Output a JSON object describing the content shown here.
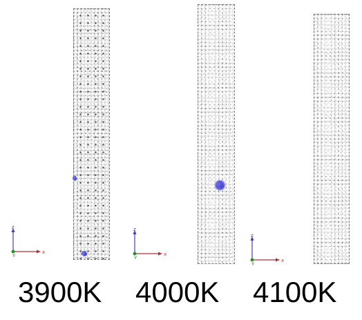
{
  "panels": [
    {
      "label": "3900K"
    },
    {
      "label": "4000K"
    },
    {
      "label": "4100K"
    }
  ],
  "axes": {
    "x_label": "x",
    "y_label": "y",
    "z_label": "z"
  },
  "colors": {
    "atoms": "#e9e9e9",
    "atom_outline": "#5a5a5a",
    "highlighted_atoms": "#5a5ad8",
    "axis_x": "#b03030",
    "axis_y": "#2f8f2f",
    "axis_z": "#4040b0"
  }
}
